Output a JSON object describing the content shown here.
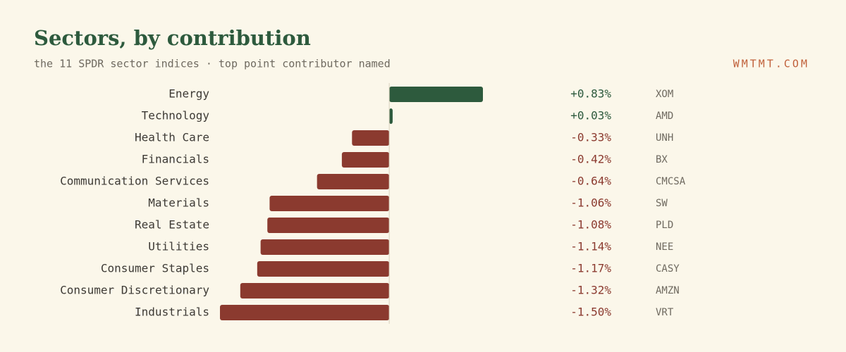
{
  "chart_data": {
    "type": "bar",
    "orientation": "horizontal",
    "title": "Sectors, by contribution",
    "subtitle": "the 11 SPDR sector indices · top point contributor named",
    "brand": "WMTMT.COM",
    "categories": [
      "Energy",
      "Technology",
      "Health Care",
      "Financials",
      "Communication Services",
      "Materials",
      "Real Estate",
      "Utilities",
      "Consumer Staples",
      "Consumer Discretionary",
      "Industrials"
    ],
    "values": [
      0.83,
      0.03,
      -0.33,
      -0.42,
      -0.64,
      -1.06,
      -1.08,
      -1.14,
      -1.17,
      -1.32,
      -1.5
    ],
    "value_labels": [
      "+0.83%",
      "+0.03%",
      "-0.33%",
      "-0.42%",
      "-0.64%",
      "-1.06%",
      "-1.08%",
      "-1.14%",
      "-1.17%",
      "-1.32%",
      "-1.50%"
    ],
    "contributors": [
      "XOM",
      "AMD",
      "UNH",
      "BX",
      "CMCSA",
      "SW",
      "PLD",
      "NEE",
      "CASY",
      "AMZN",
      "VRT"
    ],
    "positive_color": "#2d5a3d",
    "negative_color": "#8b3a2f"
  }
}
